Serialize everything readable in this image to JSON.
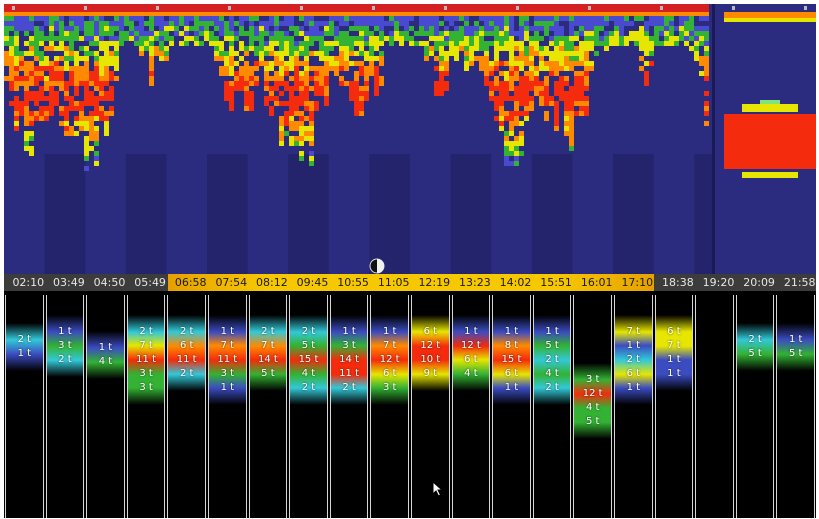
{
  "colors": {
    "background": "#2b2b80",
    "timebar": "#3c3c3c",
    "highlight": "#f6c800",
    "red": "#f42b0c",
    "orange": "#ff8a00",
    "yellow": "#e6e600",
    "green": "#33b233",
    "cyan": "#33c8d8",
    "blue": "#3b4cc0"
  },
  "timebar": {
    "labels": [
      "02:10",
      "03:49",
      "04:50",
      "05:49",
      "06:58",
      "07:54",
      "08:12",
      "09:45",
      "10:55",
      "11:05",
      "12:19",
      "13:23",
      "14:02",
      "15:51",
      "16:01",
      "17:10",
      "18:38",
      "19:20",
      "20:09",
      "21:58"
    ],
    "highlighted": [
      "06:58",
      "07:54",
      "08:12",
      "09:45",
      "10:55",
      "11:05",
      "12:19",
      "13:23",
      "14:02",
      "15:51",
      "16:01",
      "17:10"
    ]
  },
  "columns": [
    {
      "cells": [
        {
          "t": "2 t",
          "c": "cyan"
        },
        {
          "t": "1 t",
          "c": "blue"
        }
      ]
    },
    {
      "cells": [
        {
          "t": "1 t",
          "c": "blue"
        },
        {
          "t": "3 t",
          "c": "green"
        },
        {
          "t": "2 t",
          "c": "cyan"
        }
      ]
    },
    {
      "cells": [
        {
          "t": "1 t",
          "c": "blue"
        },
        {
          "t": "4 t",
          "c": "green"
        }
      ]
    },
    {
      "cells": [
        {
          "t": "2 t",
          "c": "cyan"
        },
        {
          "t": "7 t",
          "c": "yellow"
        },
        {
          "t": "11 t",
          "c": "red"
        },
        {
          "t": "3 t",
          "c": "green"
        },
        {
          "t": "3 t",
          "c": "green"
        }
      ]
    },
    {
      "cells": [
        {
          "t": "2 t",
          "c": "cyan"
        },
        {
          "t": "6 t",
          "c": "orange"
        },
        {
          "t": "11 t",
          "c": "red"
        },
        {
          "t": "2 t",
          "c": "cyan"
        }
      ]
    },
    {
      "cells": [
        {
          "t": "1 t",
          "c": "blue"
        },
        {
          "t": "7 t",
          "c": "orange"
        },
        {
          "t": "11 t",
          "c": "red"
        },
        {
          "t": "3 t",
          "c": "green"
        },
        {
          "t": "1 t",
          "c": "blue"
        }
      ]
    },
    {
      "cells": [
        {
          "t": "2 t",
          "c": "cyan"
        },
        {
          "t": "7 t",
          "c": "orange"
        },
        {
          "t": "14 t",
          "c": "red"
        },
        {
          "t": "5 t",
          "c": "green"
        }
      ]
    },
    {
      "cells": [
        {
          "t": "2 t",
          "c": "cyan"
        },
        {
          "t": "5 t",
          "c": "green"
        },
        {
          "t": "15 t",
          "c": "red"
        },
        {
          "t": "4 t",
          "c": "green"
        },
        {
          "t": "2 t",
          "c": "cyan"
        }
      ]
    },
    {
      "cells": [
        {
          "t": "1 t",
          "c": "blue"
        },
        {
          "t": "3 t",
          "c": "green"
        },
        {
          "t": "14 t",
          "c": "red"
        },
        {
          "t": "11 t",
          "c": "red"
        },
        {
          "t": "2 t",
          "c": "cyan"
        }
      ]
    },
    {
      "cells": [
        {
          "t": "1 t",
          "c": "blue"
        },
        {
          "t": "7 t",
          "c": "orange"
        },
        {
          "t": "12 t",
          "c": "red"
        },
        {
          "t": "6 t",
          "c": "yellow"
        },
        {
          "t": "3 t",
          "c": "green"
        }
      ]
    },
    {
      "cells": [
        {
          "t": "6 t",
          "c": "yellow"
        },
        {
          "t": "12 t",
          "c": "red"
        },
        {
          "t": "10 t",
          "c": "red"
        },
        {
          "t": "9 t",
          "c": "yellow"
        }
      ]
    },
    {
      "cells": [
        {
          "t": "1 t",
          "c": "blue"
        },
        {
          "t": "12 t",
          "c": "red"
        },
        {
          "t": "6 t",
          "c": "yellow"
        },
        {
          "t": "4 t",
          "c": "green"
        }
      ]
    },
    {
      "cells": [
        {
          "t": "1 t",
          "c": "blue"
        },
        {
          "t": "8 t",
          "c": "orange"
        },
        {
          "t": "15 t",
          "c": "red"
        },
        {
          "t": "6 t",
          "c": "yellow"
        },
        {
          "t": "1 t",
          "c": "blue"
        }
      ]
    },
    {
      "cells": [
        {
          "t": "1 t",
          "c": "blue"
        },
        {
          "t": "5 t",
          "c": "green"
        },
        {
          "t": "2 t",
          "c": "cyan"
        },
        {
          "t": "4 t",
          "c": "green"
        },
        {
          "t": "2 t",
          "c": "cyan"
        }
      ]
    },
    {
      "cells": [
        {
          "t": "3 t",
          "c": "green"
        },
        {
          "t": "12 t",
          "c": "red"
        },
        {
          "t": "4 t",
          "c": "green"
        },
        {
          "t": "5 t",
          "c": "green"
        }
      ]
    },
    {
      "cells": [
        {
          "t": "7 t",
          "c": "yellow"
        },
        {
          "t": "1 t",
          "c": "blue"
        },
        {
          "t": "2 t",
          "c": "cyan"
        },
        {
          "t": "6 t",
          "c": "yellow"
        },
        {
          "t": "1 t",
          "c": "blue"
        }
      ]
    },
    {
      "cells": [
        {
          "t": "6 t",
          "c": "yellow"
        },
        {
          "t": "7 t",
          "c": "yellow"
        },
        {
          "t": "1 t",
          "c": "blue"
        },
        {
          "t": "1 t",
          "c": "blue"
        }
      ]
    },
    {
      "cells": []
    },
    {
      "cells": [
        {
          "t": "2 t",
          "c": "cyan"
        },
        {
          "t": "5 t",
          "c": "green"
        }
      ]
    },
    {
      "cells": [
        {
          "t": "1 t",
          "c": "blue"
        },
        {
          "t": "5 t",
          "c": "green"
        }
      ]
    }
  ],
  "icons": {
    "cursor": "arrow-pointer-icon",
    "toggle": "half-circle-toggle-icon"
  }
}
